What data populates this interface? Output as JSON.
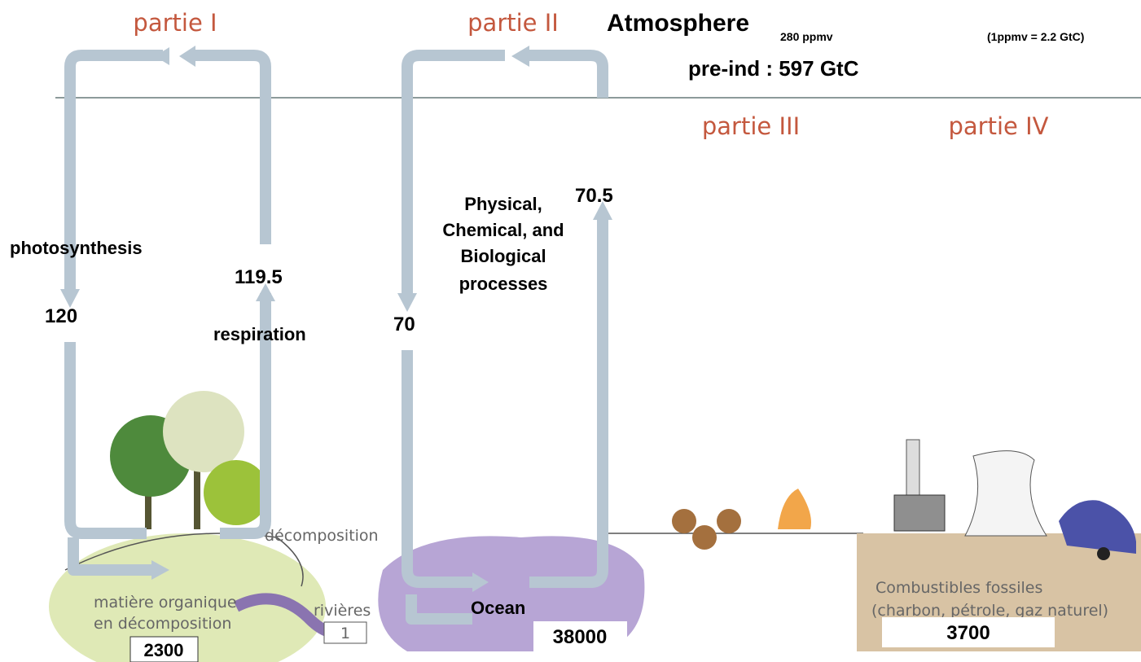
{
  "parts": [
    "partie I",
    "partie II",
    "partie III",
    "partie IV"
  ],
  "atmosphere": {
    "title": "Atmosphere",
    "ppmv": "280 ppmv",
    "conversion": "(1ppmv = 2.2 GtC)",
    "pre_ind": "pre-ind : 597 GtC"
  },
  "land": {
    "photosynthesis_label": "photosynthesis",
    "photosynthesis": "120",
    "respiration_label": "respiration",
    "respiration": "119.5",
    "decomposition": "décomposition",
    "soil_label": [
      "matière organique",
      "en décomposition"
    ],
    "soil": "2300",
    "rivers_label": "rivières",
    "rivers": "1"
  },
  "ocean": {
    "process": [
      "Physical,",
      "Chemical, and",
      "Biological",
      "processes"
    ],
    "down": "70",
    "up": "70.5",
    "label": "Ocean",
    "stock": "38000"
  },
  "fossil": {
    "label": [
      "Combustibles fossiles",
      "(charbon, pétrole, gaz naturel)"
    ],
    "stock": "3700"
  }
}
